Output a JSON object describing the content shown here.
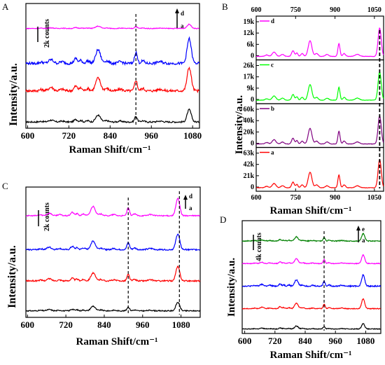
{
  "chart_data": [
    {
      "panel": "A",
      "type": "line",
      "xlabel": "Raman Shift/cm⁻¹",
      "ylabel": "Intensity/a.u.",
      "xlim": [
        595,
        1100
      ],
      "xticks": [
        "600",
        "720",
        "840",
        "960",
        "1080"
      ],
      "scale_bar": "2k counts",
      "arrow_top": "d",
      "arrow_bottom": "a",
      "dashed_line_x": 915,
      "grid": false,
      "series": [
        {
          "name": "a",
          "color": "#000000",
          "offset": 0.05,
          "scale": 0.45,
          "noise": 0.012
        },
        {
          "name": "b",
          "color": "#ff0000",
          "offset": 0.3,
          "scale": 0.85,
          "noise": 0.02
        },
        {
          "name": "c",
          "color": "#0000ff",
          "offset": 0.52,
          "scale": 0.9,
          "noise": 0.02
        },
        {
          "name": "d",
          "color": "#ff00ff",
          "offset": 0.8,
          "scale": 0.15,
          "noise": 0.006
        }
      ]
    },
    {
      "panel": "B",
      "type": "line",
      "xlabel": "Raman Shift/cm⁻¹",
      "ylabel": "Intensity/a.u.",
      "xlim": [
        600,
        1085
      ],
      "xticks": [
        "600",
        "750",
        "900",
        "1050"
      ],
      "dashed_line_x": 1070,
      "grid": false,
      "subpanels": [
        {
          "name": "d",
          "color": "#ff00ff",
          "yticks": [
            "0",
            "6k",
            "12k",
            "19k"
          ],
          "peak_scale": 0.95
        },
        {
          "name": "c",
          "color": "#00ff00",
          "yticks": [
            "0",
            "9k",
            "17k",
            "26k"
          ],
          "peak_scale": 0.95
        },
        {
          "name": "b",
          "color": "#800080",
          "yticks": [
            "0",
            "20k",
            "40k",
            "60k"
          ],
          "peak_scale": 0.95
        },
        {
          "name": "a",
          "color": "#ff0000",
          "yticks": [
            "0",
            "21k",
            "42k",
            "63k"
          ],
          "peak_scale": 0.95
        }
      ]
    },
    {
      "panel": "C",
      "type": "line",
      "xlabel": "Raman Shift/cm⁻¹",
      "ylabel": "Intensity/a.u.",
      "xlim": [
        595,
        1140
      ],
      "xticks": [
        "600",
        "720",
        "840",
        "960",
        "1080"
      ],
      "scale_bar": "2k counts",
      "arrow_top": "d",
      "arrow_bottom": "a",
      "dashed_line_x": 915,
      "dashed_line_x2": 1075,
      "grid": false,
      "series": [
        {
          "name": "a",
          "color": "#000000",
          "offset": 0.05,
          "scale": 0.3,
          "noise": 0.008
        },
        {
          "name": "b",
          "color": "#ff0000",
          "offset": 0.28,
          "scale": 0.5,
          "noise": 0.01
        },
        {
          "name": "c",
          "color": "#0000ff",
          "offset": 0.52,
          "scale": 0.55,
          "noise": 0.01
        },
        {
          "name": "d",
          "color": "#ff00ff",
          "offset": 0.78,
          "scale": 0.6,
          "noise": 0.008
        }
      ]
    },
    {
      "panel": "D",
      "type": "line",
      "xlabel": "Raman Shift/cm⁻¹",
      "ylabel": "Intensity/a.u.",
      "xlim": [
        590,
        1140
      ],
      "xticks": [
        "600",
        "720",
        "840",
        "960",
        "1080"
      ],
      "scale_bar": "4k counts",
      "arrow_top": "e",
      "arrow_bottom": "a",
      "dashed_line_x": 915,
      "grid": false,
      "series": [
        {
          "name": "a",
          "color": "#000000",
          "offset": 0.04,
          "scale": 0.22,
          "noise": 0.006
        },
        {
          "name": "b",
          "color": "#ff0000",
          "offset": 0.22,
          "scale": 0.4,
          "noise": 0.006
        },
        {
          "name": "c",
          "color": "#0000ff",
          "offset": 0.42,
          "scale": 0.45,
          "noise": 0.01
        },
        {
          "name": "d",
          "color": "#ff00ff",
          "offset": 0.62,
          "scale": 0.35,
          "noise": 0.006
        },
        {
          "name": "e",
          "color": "#008000",
          "offset": 0.82,
          "scale": 0.3,
          "noise": 0.008
        }
      ]
    }
  ]
}
